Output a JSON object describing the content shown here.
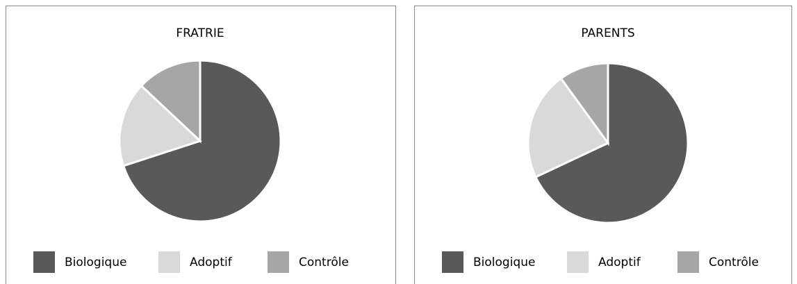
{
  "chart_data": [
    {
      "type": "pie",
      "title": "FRATRIE",
      "categories": [
        "Biologique",
        "Adoptif",
        "Contrôle"
      ],
      "values": [
        70,
        17,
        13
      ],
      "colors": [
        "#595959",
        "#d9d9d9",
        "#a6a6a6"
      ]
    },
    {
      "type": "pie",
      "title": "PARENTS",
      "categories": [
        "Biologique",
        "Adoptif",
        "Contrôle"
      ],
      "values": [
        68,
        22,
        10
      ],
      "colors": [
        "#595959",
        "#d9d9d9",
        "#a6a6a6"
      ]
    }
  ]
}
